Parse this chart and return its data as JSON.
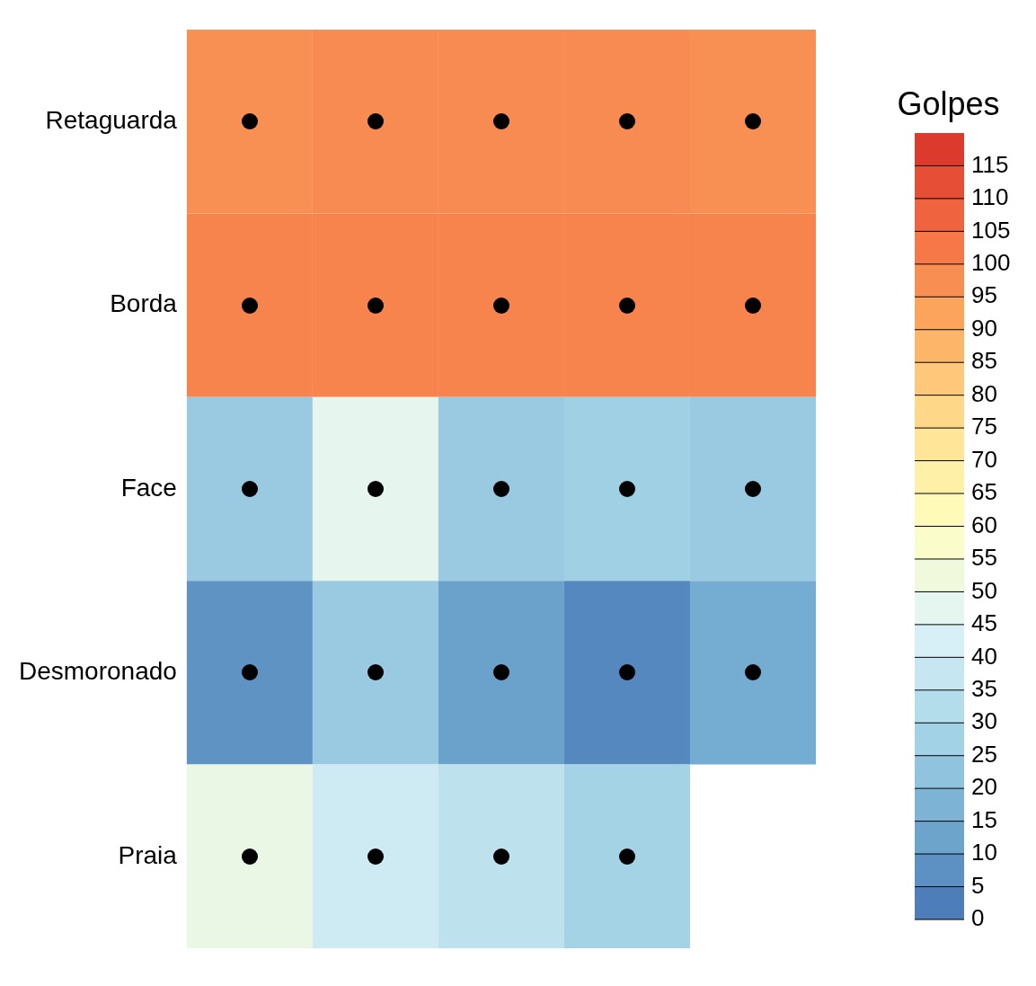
{
  "chart_data": {
    "type": "heatmap",
    "categories": [
      null,
      null,
      null,
      null,
      null
    ],
    "y_categories": [
      "Retaguarda",
      "Borda",
      "Face",
      "Desmoronado",
      "Praia"
    ],
    "cells": [
      [
        97,
        98,
        98,
        98,
        97
      ],
      [
        100,
        100,
        100,
        100,
        100
      ],
      [
        25,
        48,
        25,
        27,
        25
      ],
      [
        8,
        25,
        12,
        5,
        15
      ],
      [
        50,
        40,
        35,
        28,
        null
      ]
    ],
    "clabel": "Golpes",
    "clim": [
      0,
      120
    ],
    "cticks": [
      0,
      5,
      10,
      15,
      20,
      25,
      30,
      35,
      40,
      45,
      50,
      55,
      60,
      65,
      70,
      75,
      80,
      85,
      90,
      95,
      100,
      105,
      110,
      115
    ],
    "tick_labels": "y"
  }
}
